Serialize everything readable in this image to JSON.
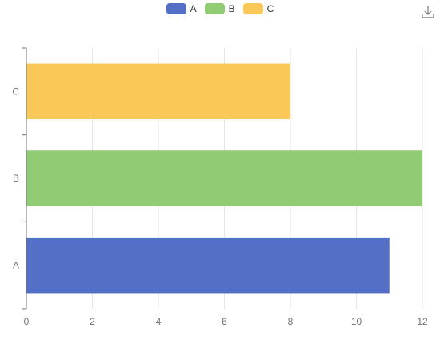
{
  "chart_data": {
    "type": "bar",
    "orientation": "horizontal",
    "categories": [
      "A",
      "B",
      "C"
    ],
    "values": [
      11,
      12,
      8
    ],
    "colors": [
      "#5470c6",
      "#91cc75",
      "#fac858"
    ],
    "legend": [
      "A",
      "B",
      "C"
    ],
    "legend_position": "top-center",
    "x_ticks": [
      0,
      2,
      4,
      6,
      8,
      10,
      12
    ],
    "xlim": [
      0,
      12
    ],
    "grid": true,
    "title": "",
    "xlabel": "",
    "ylabel": ""
  },
  "toolbar": {
    "download_icon": "download-icon"
  }
}
